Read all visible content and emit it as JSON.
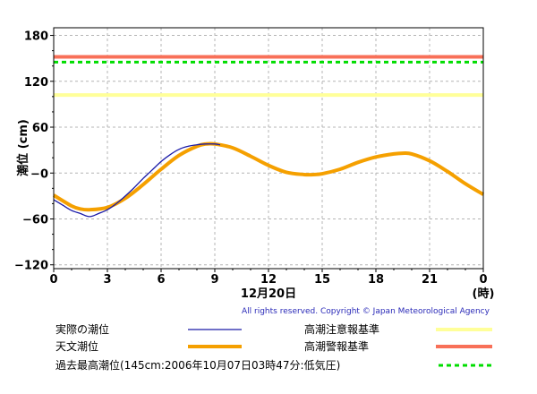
{
  "chart_data": {
    "type": "line",
    "ylabel": "潮位 (cm)",
    "xlabel": "12月20日",
    "x_unit_label": "(時)",
    "xlim": [
      0,
      24
    ],
    "ylim": [
      -125,
      190
    ],
    "x_ticks": [
      "0",
      "3",
      "6",
      "9",
      "12",
      "15",
      "18",
      "21",
      "0"
    ],
    "y_ticks": [
      "180",
      "120",
      "60",
      "−0",
      "−60",
      "−120"
    ],
    "grid": true,
    "series": [
      {
        "name": "実際の潮位",
        "color": "#1a1aa8",
        "x": [
          0,
          0.5,
          1,
          1.5,
          2,
          2.5,
          3,
          3.5,
          4,
          4.5,
          5,
          5.5,
          6,
          6.5,
          7,
          7.5,
          8,
          8.5,
          9,
          9.3
        ],
        "y": [
          -35,
          -42,
          -49,
          -53,
          -57,
          -53,
          -48,
          -40,
          -30,
          -19,
          -7,
          4,
          15,
          24,
          31,
          35,
          37,
          38,
          38,
          37
        ]
      },
      {
        "name": "天文潮位",
        "color": "#f5a000",
        "x": [
          0,
          1,
          1.5,
          2,
          3,
          4,
          5,
          6,
          7,
          8,
          8.5,
          9,
          10,
          11,
          12,
          13,
          14,
          14.5,
          15,
          16,
          17,
          18,
          19,
          19.5,
          20,
          21,
          22,
          23,
          24
        ],
        "y": [
          -29,
          -43,
          -47,
          -48,
          -45,
          -33,
          -15,
          5,
          23,
          35,
          38,
          38,
          33,
          22,
          10,
          1,
          -2,
          -2,
          -1,
          5,
          14,
          21,
          25,
          26,
          25,
          16,
          2,
          -14,
          -28
        ]
      }
    ],
    "reference_lines": [
      {
        "name": "高潮注意報基準",
        "y": 102,
        "color": "#ffff99",
        "style": "solid"
      },
      {
        "name": "高潮警報基準",
        "y": 152,
        "color": "#f87058",
        "style": "solid"
      },
      {
        "name": "過去最高潮位(145cm:2006年10月07日03時47分:低気圧)",
        "y": 145,
        "color": "#00dd00",
        "style": "dashed"
      }
    ]
  },
  "copyright": "All rights reserved. Copyright © Japan Meteorological Agency",
  "legend": {
    "actual": "実際の潮位",
    "astro": "天文潮位",
    "caution": "高潮注意報基準",
    "warning": "高潮警報基準",
    "record": "過去最高潮位(145cm:2006年10月07日03時47分:低気圧)"
  }
}
